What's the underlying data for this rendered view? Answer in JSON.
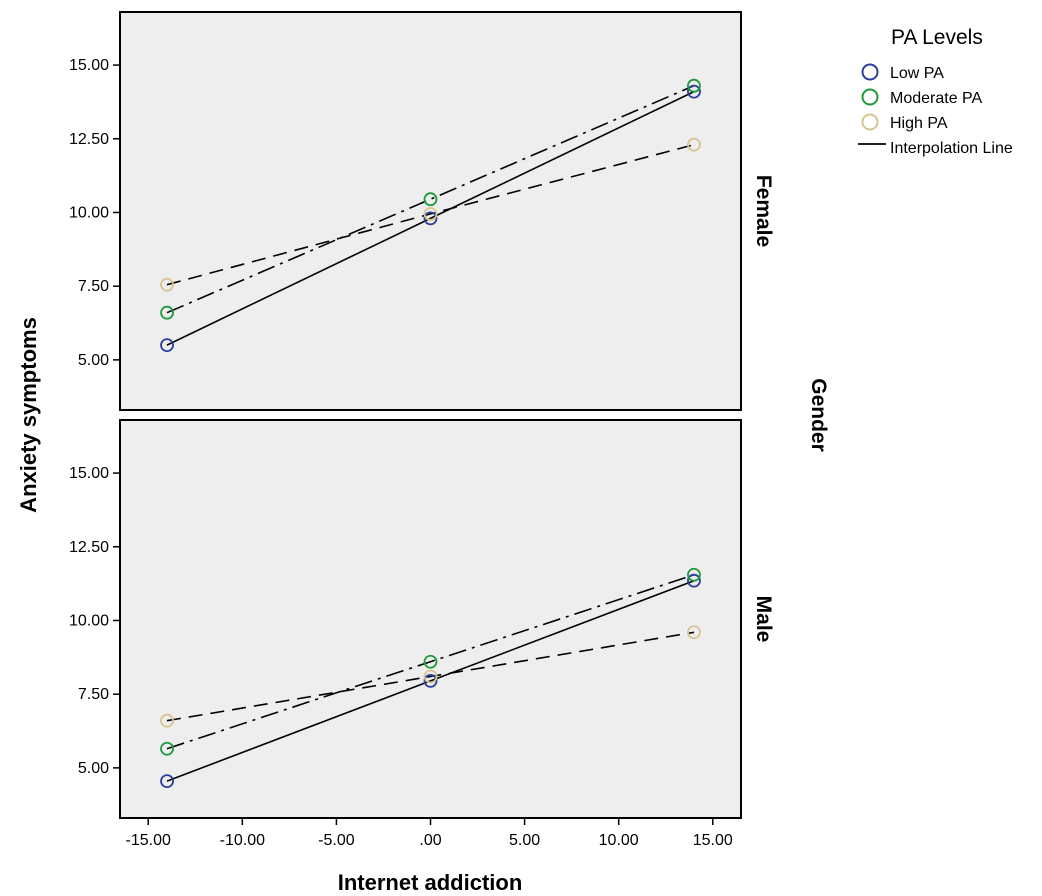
{
  "chart_data": {
    "type": "line",
    "x_axis_label": "Internet addiction",
    "y_axis_label": "Anxiety symptoms",
    "facet_variable_label": "Gender",
    "xlim": [
      -16.5,
      16.5
    ],
    "ylim": [
      3.3,
      16.8
    ],
    "x_ticks": [
      -15,
      -10,
      -5,
      0,
      5,
      10,
      15
    ],
    "x_tick_labels": [
      "-15.00",
      "-10.00",
      "-5.00",
      ".00",
      "5.00",
      "10.00",
      "15.00"
    ],
    "y_ticks": [
      5,
      7.5,
      10,
      12.5,
      15
    ],
    "y_tick_labels": [
      "5.00",
      "7.50",
      "10.00",
      "12.50",
      "15.00"
    ],
    "x": [
      -14,
      0,
      14
    ],
    "legend": {
      "title": "PA Levels",
      "placement": "top-right",
      "entries": [
        {
          "label": "Low PA",
          "marker": "circle",
          "color": "#2b3e9e"
        },
        {
          "label": "Moderate PA",
          "marker": "circle",
          "color": "#1e9a3c"
        },
        {
          "label": "High PA",
          "marker": "circle",
          "color": "#d8c492"
        },
        {
          "label": "Interpolation Line",
          "marker": "line",
          "color": "#000000"
        }
      ]
    },
    "panels": [
      {
        "facet": "Female",
        "series": [
          {
            "name": "Low PA",
            "color": "#2b3e9e",
            "dash": "solid",
            "values": [
              5.5,
              9.8,
              14.1
            ]
          },
          {
            "name": "Moderate PA",
            "color": "#1e9a3c",
            "dash": "dashdot",
            "values": [
              6.6,
              10.45,
              14.3
            ]
          },
          {
            "name": "High PA",
            "color": "#d8c492",
            "dash": "dash",
            "values": [
              7.55,
              9.95,
              12.3
            ]
          }
        ]
      },
      {
        "facet": "Male",
        "series": [
          {
            "name": "Low PA",
            "color": "#2b3e9e",
            "dash": "solid",
            "values": [
              4.55,
              7.95,
              11.35
            ]
          },
          {
            "name": "Moderate PA",
            "color": "#1e9a3c",
            "dash": "dashdot",
            "values": [
              5.65,
              8.6,
              11.55
            ]
          },
          {
            "name": "High PA",
            "color": "#d8c492",
            "dash": "dash",
            "values": [
              6.6,
              8.1,
              9.6
            ]
          }
        ]
      }
    ],
    "panel_background": "#eeeeee",
    "grid": false
  }
}
